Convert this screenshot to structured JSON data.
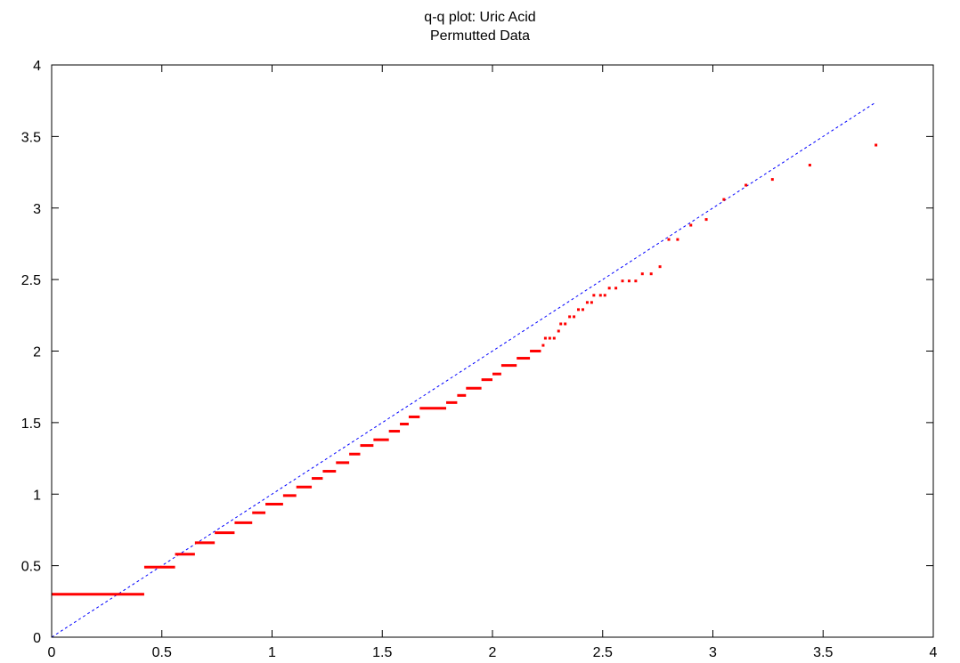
{
  "chart_data": {
    "type": "scatter",
    "title": "q-q plot: Uric Acid",
    "subtitle": "Permutted Data",
    "xlabel": "",
    "ylabel": "",
    "xlim": [
      0,
      4
    ],
    "ylim": [
      0,
      4
    ],
    "xticks": [
      "0",
      "0.5",
      "1",
      "1.5",
      "2",
      "2.5",
      "3",
      "3.5",
      "4"
    ],
    "yticks": [
      "0",
      "0.5",
      "1",
      "1.5",
      "2",
      "2.5",
      "3",
      "3.5",
      "4"
    ],
    "grid": false,
    "legend": "none",
    "colors": {
      "points": "#ff0000",
      "reference": "#0000ff",
      "axes": "#000000"
    },
    "reference_line": {
      "x": [
        0,
        3.74
      ],
      "y": [
        0,
        3.74
      ],
      "style": "dashed"
    },
    "steps": [
      {
        "x0": 0.0,
        "x1": 0.42,
        "y": 0.3
      },
      {
        "x0": 0.42,
        "x1": 0.56,
        "y": 0.49
      },
      {
        "x0": 0.56,
        "x1": 0.65,
        "y": 0.58
      },
      {
        "x0": 0.65,
        "x1": 0.74,
        "y": 0.66
      },
      {
        "x0": 0.74,
        "x1": 0.83,
        "y": 0.73
      },
      {
        "x0": 0.83,
        "x1": 0.91,
        "y": 0.8
      },
      {
        "x0": 0.91,
        "x1": 0.97,
        "y": 0.87
      },
      {
        "x0": 0.97,
        "x1": 1.05,
        "y": 0.93
      },
      {
        "x0": 1.05,
        "x1": 1.11,
        "y": 0.99
      },
      {
        "x0": 1.11,
        "x1": 1.18,
        "y": 1.05
      },
      {
        "x0": 1.18,
        "x1": 1.23,
        "y": 1.11
      },
      {
        "x0": 1.23,
        "x1": 1.29,
        "y": 1.16
      },
      {
        "x0": 1.29,
        "x1": 1.35,
        "y": 1.22
      },
      {
        "x0": 1.35,
        "x1": 1.4,
        "y": 1.28
      },
      {
        "x0": 1.4,
        "x1": 1.46,
        "y": 1.34
      },
      {
        "x0": 1.46,
        "x1": 1.53,
        "y": 1.38
      },
      {
        "x0": 1.53,
        "x1": 1.58,
        "y": 1.44
      },
      {
        "x0": 1.58,
        "x1": 1.62,
        "y": 1.49
      },
      {
        "x0": 1.62,
        "x1": 1.67,
        "y": 1.54
      },
      {
        "x0": 1.67,
        "x1": 1.79,
        "y": 1.6
      },
      {
        "x0": 1.79,
        "x1": 1.84,
        "y": 1.64
      },
      {
        "x0": 1.84,
        "x1": 1.88,
        "y": 1.69
      },
      {
        "x0": 1.88,
        "x1": 1.95,
        "y": 1.74
      },
      {
        "x0": 1.95,
        "x1": 2.0,
        "y": 1.8
      },
      {
        "x0": 2.0,
        "x1": 2.04,
        "y": 1.84
      },
      {
        "x0": 2.04,
        "x1": 2.11,
        "y": 1.9
      },
      {
        "x0": 2.11,
        "x1": 2.17,
        "y": 1.95
      },
      {
        "x0": 2.17,
        "x1": 2.22,
        "y": 2.0
      }
    ],
    "points": [
      {
        "x": 2.23,
        "y": 2.04
      },
      {
        "x": 2.24,
        "y": 2.09
      },
      {
        "x": 2.26,
        "y": 2.09
      },
      {
        "x": 2.28,
        "y": 2.09
      },
      {
        "x": 2.3,
        "y": 2.14
      },
      {
        "x": 2.31,
        "y": 2.19
      },
      {
        "x": 2.33,
        "y": 2.19
      },
      {
        "x": 2.35,
        "y": 2.24
      },
      {
        "x": 2.37,
        "y": 2.24
      },
      {
        "x": 2.39,
        "y": 2.29
      },
      {
        "x": 2.41,
        "y": 2.29
      },
      {
        "x": 2.43,
        "y": 2.34
      },
      {
        "x": 2.45,
        "y": 2.34
      },
      {
        "x": 2.46,
        "y": 2.39
      },
      {
        "x": 2.49,
        "y": 2.39
      },
      {
        "x": 2.51,
        "y": 2.39
      },
      {
        "x": 2.53,
        "y": 2.44
      },
      {
        "x": 2.56,
        "y": 2.44
      },
      {
        "x": 2.59,
        "y": 2.49
      },
      {
        "x": 2.62,
        "y": 2.49
      },
      {
        "x": 2.65,
        "y": 2.49
      },
      {
        "x": 2.68,
        "y": 2.54
      },
      {
        "x": 2.72,
        "y": 2.54
      },
      {
        "x": 2.76,
        "y": 2.59
      },
      {
        "x": 2.8,
        "y": 2.78
      },
      {
        "x": 2.84,
        "y": 2.78
      },
      {
        "x": 2.9,
        "y": 2.88
      },
      {
        "x": 2.97,
        "y": 2.92
      },
      {
        "x": 3.05,
        "y": 3.06
      },
      {
        "x": 3.15,
        "y": 3.16
      },
      {
        "x": 3.27,
        "y": 3.2
      },
      {
        "x": 3.44,
        "y": 3.3
      },
      {
        "x": 3.74,
        "y": 3.44
      }
    ]
  }
}
